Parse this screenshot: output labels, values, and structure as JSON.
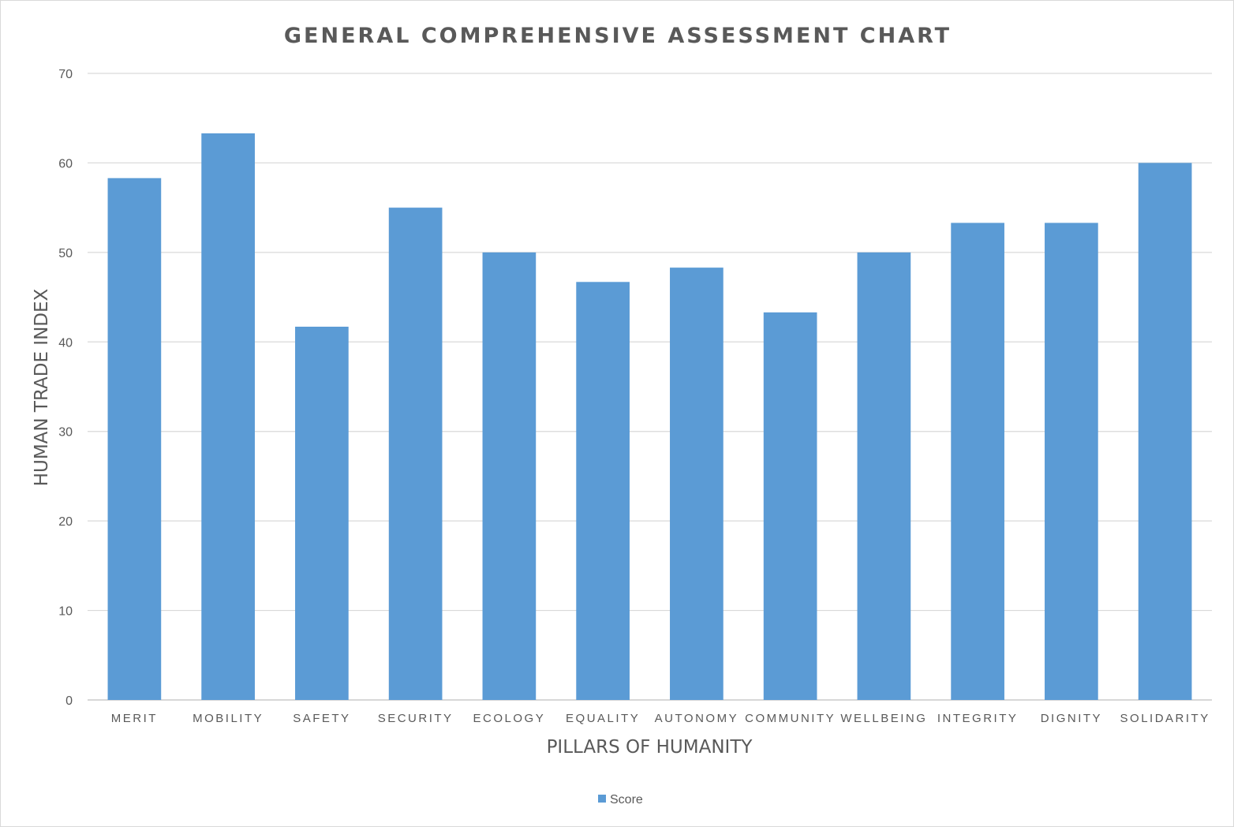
{
  "chart_data": {
    "type": "bar",
    "title": "GENERAL COMPREHENSIVE ASSESSMENT CHART",
    "xlabel": "PILLARS OF HUMANITY",
    "ylabel": "HUMAN TRADE INDEX",
    "ylim": [
      0,
      70
    ],
    "yticks": [
      "0",
      "10",
      "20",
      "30",
      "40",
      "50",
      "60",
      "70"
    ],
    "grid": true,
    "legend_position": "bottom",
    "categories": [
      "MERIT",
      "MOBILITY",
      "SAFETY",
      "SECURITY",
      "ECOLOGY",
      "EQUALITY",
      "AUTONOMY",
      "COMMUNITY",
      "WELLBEING",
      "INTEGRITY",
      "DIGNITY",
      "SOLIDARITY"
    ],
    "series": [
      {
        "name": "Score",
        "color": "#5b9bd5",
        "values": [
          58.3,
          63.3,
          41.7,
          55.0,
          50.0,
          46.7,
          48.3,
          43.3,
          50.0,
          53.3,
          53.3,
          60.0
        ]
      }
    ]
  }
}
